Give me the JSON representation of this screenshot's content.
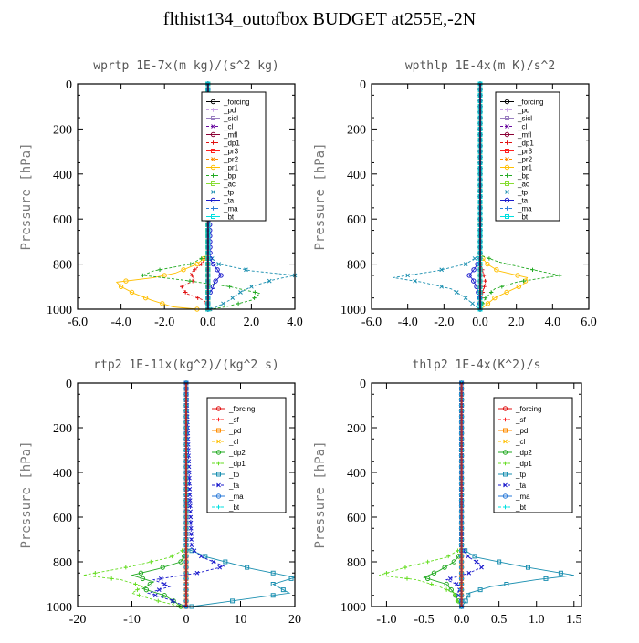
{
  "figure_title": "flthist134_outofbox  BUDGET at255E,-2N",
  "chart_data": [
    {
      "type": "line",
      "title": "wprtp  1E-7x(m kg)/(s^2 kg)",
      "ylabel": "Pressure [hPa]",
      "xlim": [
        -6,
        4
      ],
      "ylim": [
        1000,
        0
      ],
      "xticks": [
        "-6.0",
        "-4.0",
        "-2.0",
        "0.0",
        "2.0",
        "4.0"
      ],
      "yticks": [
        "0",
        "200",
        "400",
        "600",
        "800",
        "1000"
      ],
      "legend_position": "top-right",
      "series": [
        {
          "name": "_forcing",
          "color": "#000000",
          "p": [
            0,
            1000
          ],
          "v": [
            0,
            0
          ]
        },
        {
          "name": "_pd",
          "color": "#c9a2e6",
          "p": [
            0,
            1000
          ],
          "v": [
            0,
            0
          ]
        },
        {
          "name": "_sicl",
          "color": "#9a7fc0",
          "p": [
            0,
            1000
          ],
          "v": [
            0,
            0
          ]
        },
        {
          "name": "_cl",
          "color": "#6a0da0",
          "p": [
            0,
            1000
          ],
          "v": [
            0,
            0
          ]
        },
        {
          "name": "_mfl",
          "color": "#8b0035",
          "p": [
            0,
            1000
          ],
          "v": [
            0,
            0
          ]
        },
        {
          "name": "_dp1",
          "color": "#e01010",
          "p": [
            0,
            760,
            800,
            840,
            870,
            900,
            930,
            960,
            990,
            1000
          ],
          "v": [
            0,
            0,
            -0.3,
            -0.8,
            -0.6,
            -1.2,
            -1.0,
            -0.2,
            0.1,
            0.0
          ]
        },
        {
          "name": "_pr3",
          "color": "#ff2020",
          "p": [
            0,
            1000
          ],
          "v": [
            0,
            0
          ]
        },
        {
          "name": "_pr2",
          "color": "#ff8c00",
          "p": [
            0,
            1000
          ],
          "v": [
            0,
            0
          ]
        },
        {
          "name": "_pr1",
          "color": "#ffbf00",
          "p": [
            0,
            760,
            800,
            840,
            860,
            880,
            900,
            930,
            960,
            990,
            1000
          ],
          "v": [
            0,
            0,
            -0.5,
            -1.5,
            -2.5,
            -4.2,
            -4.0,
            -3.4,
            -2.6,
            -1.6,
            -0.5
          ]
        },
        {
          "name": "_bp",
          "color": "#22aa22",
          "p": [
            0,
            760,
            800,
            830,
            850,
            870,
            900,
            930,
            960,
            990,
            1000
          ],
          "v": [
            0,
            0,
            -0.8,
            -2.5,
            -3.0,
            -1.2,
            1.0,
            2.4,
            2.0,
            0.8,
            0.1
          ]
        },
        {
          "name": "_ac",
          "color": "#88dd33",
          "p": [
            0,
            1000
          ],
          "v": [
            0,
            0
          ]
        },
        {
          "name": "_tp",
          "color": "#1a8fb0",
          "p": [
            0,
            760,
            800,
            830,
            850,
            870,
            900,
            930,
            960,
            990,
            1000
          ],
          "v": [
            0,
            0,
            0.5,
            2.0,
            4.0,
            3.0,
            2.0,
            1.4,
            1.0,
            0.4,
            0.1
          ]
        },
        {
          "name": "_ta",
          "color": "#1a1acc",
          "p": [
            0,
            780,
            820,
            850,
            880,
            910,
            940,
            1000
          ],
          "v": [
            0,
            0.1,
            0.4,
            0.6,
            0.3,
            0.2,
            0.0,
            0.0
          ]
        },
        {
          "name": "_ma",
          "color": "#2a7ad8",
          "p": [
            0,
            1000
          ],
          "v": [
            0,
            0
          ]
        },
        {
          "name": "_bt",
          "color": "#00e0e0",
          "p": [
            0,
            1000
          ],
          "v": [
            0,
            0
          ]
        }
      ]
    },
    {
      "type": "line",
      "title": "wpthlp  1E-4x(m K)/s^2",
      "ylabel": "Pressure [hPa]",
      "xlim": [
        -6,
        6
      ],
      "ylim": [
        1000,
        0
      ],
      "xticks": [
        "-6.0",
        "-4.0",
        "-2.0",
        "0.0",
        "2.0",
        "4.0",
        "6.0"
      ],
      "yticks": [
        "0",
        "200",
        "400",
        "600",
        "800",
        "1000"
      ],
      "legend_position": "top-right",
      "series": [
        {
          "name": "_forcing",
          "color": "#000000",
          "p": [
            0,
            1000
          ],
          "v": [
            0,
            0
          ]
        },
        {
          "name": "_pd",
          "color": "#c9a2e6",
          "p": [
            0,
            1000
          ],
          "v": [
            0,
            0
          ]
        },
        {
          "name": "_sicl",
          "color": "#9a7fc0",
          "p": [
            0,
            1000
          ],
          "v": [
            0,
            0
          ]
        },
        {
          "name": "_cl",
          "color": "#6a0da0",
          "p": [
            0,
            1000
          ],
          "v": [
            0,
            0
          ]
        },
        {
          "name": "_mfl",
          "color": "#8b0035",
          "p": [
            0,
            1000
          ],
          "v": [
            0,
            0
          ]
        },
        {
          "name": "_dp1",
          "color": "#e01010",
          "p": [
            0,
            780,
            820,
            850,
            880,
            920,
            960,
            1000
          ],
          "v": [
            0,
            0,
            0.1,
            0.2,
            0.3,
            0.15,
            0.05,
            0.0
          ]
        },
        {
          "name": "_pr3",
          "color": "#ff2020",
          "p": [
            0,
            1000
          ],
          "v": [
            0,
            0
          ]
        },
        {
          "name": "_pr2",
          "color": "#ff8c00",
          "p": [
            0,
            1000
          ],
          "v": [
            0,
            0
          ]
        },
        {
          "name": "_pr1",
          "color": "#ffbf00",
          "p": [
            0,
            760,
            800,
            830,
            860,
            890,
            920,
            950,
            990,
            1000
          ],
          "v": [
            0,
            0,
            0.4,
            1.0,
            2.6,
            2.4,
            1.6,
            0.8,
            0.2,
            0.0
          ]
        },
        {
          "name": "_bp",
          "color": "#22aa22",
          "p": [
            0,
            760,
            790,
            820,
            850,
            880,
            910,
            950,
            990,
            1000
          ],
          "v": [
            0,
            0,
            1.0,
            2.6,
            4.4,
            2.0,
            0.8,
            0.3,
            0.05,
            0.0
          ]
        },
        {
          "name": "_ac",
          "color": "#88dd33",
          "p": [
            0,
            1000
          ],
          "v": [
            0,
            0
          ]
        },
        {
          "name": "_tp",
          "color": "#1a8fb0",
          "p": [
            0,
            760,
            800,
            830,
            860,
            880,
            910,
            950,
            990,
            1000
          ],
          "v": [
            0,
            0,
            -0.8,
            -2.4,
            -4.8,
            -3.2,
            -1.6,
            -0.8,
            -0.2,
            0.0
          ]
        },
        {
          "name": "_ta",
          "color": "#1a1acc",
          "p": [
            0,
            780,
            820,
            850,
            870,
            900,
            940,
            1000
          ],
          "v": [
            0,
            0,
            -0.3,
            -0.6,
            -0.4,
            -0.2,
            -0.05,
            0.0
          ]
        },
        {
          "name": "_ma",
          "color": "#2a7ad8",
          "p": [
            0,
            1000
          ],
          "v": [
            0,
            0
          ]
        },
        {
          "name": "_bt",
          "color": "#00e0e0",
          "p": [
            0,
            1000
          ],
          "v": [
            0,
            0
          ]
        }
      ]
    },
    {
      "type": "line",
      "title": "rtp2  1E-11x(kg^2)/(kg^2 s)",
      "ylabel": "Pressure [hPa]",
      "xlim": [
        -20,
        20
      ],
      "ylim": [
        1000,
        0
      ],
      "xticks": [
        "-20",
        "-10",
        "0",
        "10",
        "20"
      ],
      "yticks": [
        "0",
        "200",
        "400",
        "600",
        "800",
        "1000"
      ],
      "legend_position": "top-right",
      "series": [
        {
          "name": "_forcing",
          "color": "#e01010",
          "p": [
            0,
            1000
          ],
          "v": [
            0,
            0
          ]
        },
        {
          "name": "_sf",
          "color": "#ff2020",
          "p": [
            0,
            1000
          ],
          "v": [
            0,
            0
          ]
        },
        {
          "name": "_pd",
          "color": "#ff8c00",
          "p": [
            0,
            1000
          ],
          "v": [
            0,
            0
          ]
        },
        {
          "name": "_cl",
          "color": "#ffbf00",
          "p": [
            0,
            1000
          ],
          "v": [
            0,
            0
          ]
        },
        {
          "name": "_dp2",
          "color": "#22aa22",
          "p": [
            0,
            760,
            800,
            830,
            860,
            890,
            920,
            950,
            980,
            1000
          ],
          "v": [
            0,
            0,
            -1.0,
            -5.0,
            -10.0,
            -6.0,
            -8.0,
            -4.0,
            -2.0,
            -1.0
          ]
        },
        {
          "name": "_dp1",
          "color": "#66dd22",
          "p": [
            0,
            740,
            780,
            820,
            860,
            880,
            910,
            940,
            970,
            1000
          ],
          "v": [
            0,
            0,
            -3.0,
            -10.0,
            -19.0,
            -12.0,
            -8.0,
            -10.0,
            -6.0,
            -1.0
          ]
        },
        {
          "name": "_tp",
          "color": "#1a8fb0",
          "p": [
            0,
            740,
            780,
            830,
            870,
            900,
            940,
            970,
            1000
          ],
          "v": [
            0,
            0,
            4.0,
            12.0,
            20.0,
            16.0,
            19.0,
            10.0,
            1.0
          ]
        },
        {
          "name": "_ta",
          "color": "#1a1acc",
          "p": [
            0,
            740,
            780,
            820,
            850,
            880,
            910,
            940,
            970,
            1000
          ],
          "v": [
            0,
            1.0,
            3.0,
            7.0,
            2.0,
            -6.0,
            -3.0,
            -7.0,
            -3.0,
            0.0
          ]
        },
        {
          "name": "_ma",
          "color": "#2a7ad8",
          "p": [
            0,
            1000
          ],
          "v": [
            0,
            0
          ]
        },
        {
          "name": "_bt",
          "color": "#00e0e0",
          "p": [
            0,
            1000
          ],
          "v": [
            0,
            0
          ]
        }
      ]
    },
    {
      "type": "line",
      "title": "thlp2  1E-4x(K^2)/s",
      "ylabel": "Pressure [hPa]",
      "xlim": [
        -1.2,
        1.6
      ],
      "ylim": [
        1000,
        0
      ],
      "xticks": [
        "-1.0",
        "-0.5",
        "0.0",
        "0.5",
        "1.0",
        "1.5"
      ],
      "yticks": [
        "0",
        "200",
        "400",
        "600",
        "800",
        "1000"
      ],
      "legend_position": "top-right",
      "series": [
        {
          "name": "_forcing",
          "color": "#e01010",
          "p": [
            0,
            1000
          ],
          "v": [
            0,
            0
          ]
        },
        {
          "name": "_sf",
          "color": "#ff2020",
          "p": [
            0,
            1000
          ],
          "v": [
            0,
            0
          ]
        },
        {
          "name": "_pd",
          "color": "#ff8c00",
          "p": [
            0,
            1000
          ],
          "v": [
            0,
            0
          ]
        },
        {
          "name": "_cl",
          "color": "#ffbf00",
          "p": [
            0,
            1000
          ],
          "v": [
            0,
            0
          ]
        },
        {
          "name": "_dp2",
          "color": "#22aa22",
          "p": [
            0,
            760,
            800,
            840,
            870,
            900,
            940,
            970,
            1000
          ],
          "v": [
            0,
            0,
            -0.1,
            -0.3,
            -0.5,
            -0.2,
            -0.1,
            -0.05,
            0.0
          ]
        },
        {
          "name": "_dp1",
          "color": "#66dd22",
          "p": [
            0,
            740,
            780,
            820,
            860,
            880,
            910,
            940,
            980,
            1000
          ],
          "v": [
            0,
            0,
            -0.2,
            -0.7,
            -1.1,
            -0.6,
            -0.3,
            -0.1,
            -0.05,
            0.0
          ]
        },
        {
          "name": "_tp",
          "color": "#1a8fb0",
          "p": [
            0,
            740,
            780,
            820,
            860,
            880,
            910,
            940,
            980,
            1000
          ],
          "v": [
            0,
            0,
            0.2,
            0.8,
            1.5,
            1.0,
            0.4,
            0.1,
            0.05,
            0.0
          ]
        },
        {
          "name": "_ta",
          "color": "#1a1acc",
          "p": [
            0,
            740,
            780,
            820,
            850,
            880,
            910,
            940,
            980,
            1000
          ],
          "v": [
            0,
            0,
            0.1,
            0.3,
            0.1,
            -0.2,
            0.0,
            -0.05,
            0.0,
            0.0
          ]
        },
        {
          "name": "_ma",
          "color": "#2a7ad8",
          "p": [
            0,
            1000
          ],
          "v": [
            0,
            0
          ]
        },
        {
          "name": "_bt",
          "color": "#00e0e0",
          "p": [
            0,
            1000
          ],
          "v": [
            0,
            0
          ]
        }
      ]
    }
  ]
}
